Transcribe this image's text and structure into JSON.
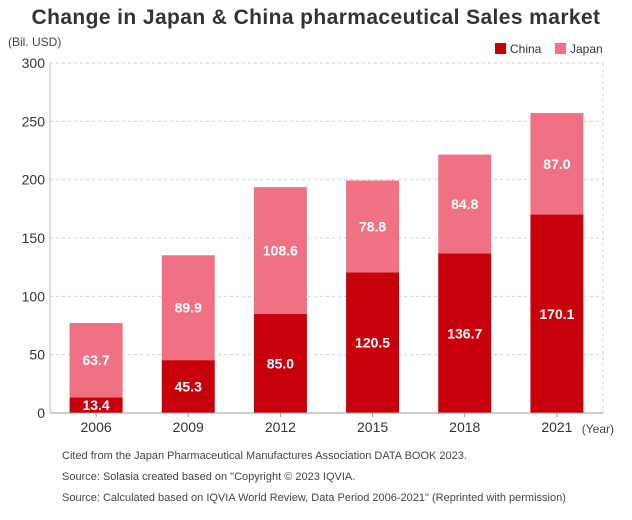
{
  "chart_data": {
    "type": "bar",
    "stacked": true,
    "title": "Change in Japan & China pharmaceutical Sales market",
    "ylabel": "(Bil. USD)",
    "xlabel": "(Year)",
    "categories": [
      "2006",
      "2009",
      "2012",
      "2015",
      "2018",
      "2021"
    ],
    "series": [
      {
        "name": "China",
        "color": "#c8000b",
        "values": [
          13.4,
          45.3,
          85.0,
          120.5,
          136.7,
          170.1
        ],
        "labels": [
          "13.4",
          "45.3",
          "85.0",
          "120.5",
          "136.7",
          "170.1"
        ]
      },
      {
        "name": "Japan",
        "color": "#ef7183",
        "values": [
          63.7,
          89.9,
          108.6,
          78.8,
          84.8,
          87.0
        ],
        "labels": [
          "63.7",
          "89.9",
          "108.6",
          "78.8",
          "84.8",
          "87.0"
        ]
      }
    ],
    "ylim": [
      0,
      300
    ],
    "yticks": [
      "0",
      "50",
      "100",
      "150",
      "200",
      "250",
      "300"
    ],
    "grid": "horizontal-dashed",
    "legend_position": "top-right"
  },
  "sources": [
    "Cited from the Japan Pharmaceutical Manufactures Association DATA BOOK 2023.",
    "Source: Solasia created based on \"Copyright © 2023 IQVIA.",
    "Source: Calculated based on IQVIA World Review, Data Period 2006-2021\" (Reprinted with permission)"
  ]
}
